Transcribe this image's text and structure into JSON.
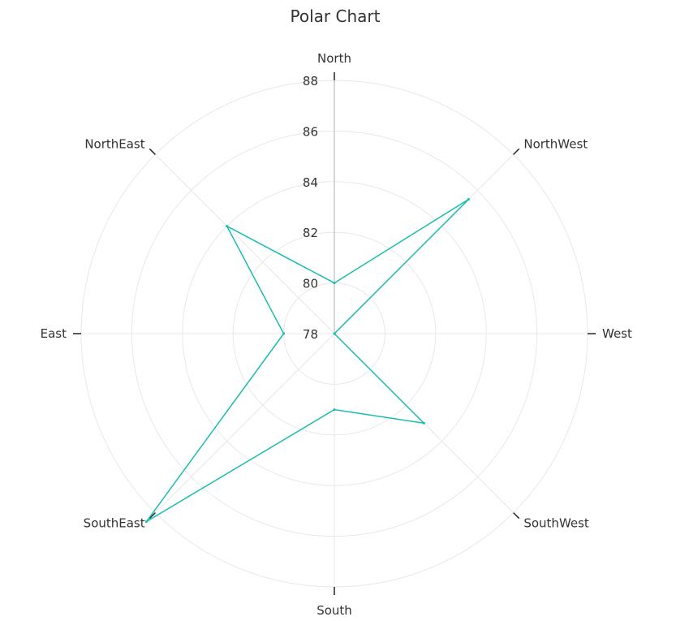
{
  "chart_data": {
    "type": "polar",
    "title": "Polar Chart",
    "categories": [
      "North",
      "NorthWest",
      "West",
      "SouthWest",
      "South",
      "SouthEast",
      "East",
      "NorthEast"
    ],
    "series": [
      {
        "values": [
          80,
          85.5,
          78,
          83,
          81,
          88.5,
          80,
          84
        ]
      }
    ],
    "rlim": [
      78,
      88
    ],
    "r_ticks": [
      78,
      80,
      82,
      84,
      86,
      88
    ],
    "grid": true,
    "legend": "none",
    "colors": {
      "series": "#1bbcb0",
      "grid": "#e8e8e8",
      "axis": "#c9c9c9",
      "text": "#333333"
    }
  }
}
